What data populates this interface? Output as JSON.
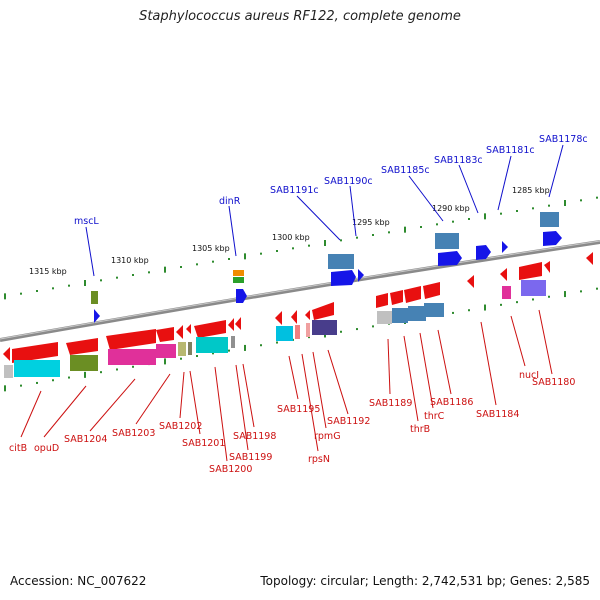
{
  "title": "Staphylococcus aureus RF122, complete genome",
  "footer": {
    "accession": "Accession: NC_007622",
    "summary": "Topology: circular; Length: 2,742,531 bp; Genes: 2,585"
  },
  "colors": {
    "backbone": "#8a8a8a",
    "tick": "#2e8b2e",
    "upper_label": "#1010cc",
    "lower_label": "#cc1010",
    "forward_gene": "#1515e8",
    "reverse_gene": "#e81010"
  },
  "scale_labels": [
    "1315 kbp",
    "1310 kbp",
    "1305 kbp",
    "1300 kbp",
    "1295 kbp",
    "1290 kbp",
    "1285 kbp"
  ],
  "upper_genes": [
    "mscL",
    "dinR",
    "SAB1191c",
    "SAB1190c",
    "SAB1185c",
    "SAB1183c",
    "SAB1181c",
    "SAB1178c"
  ],
  "lower_genes": [
    "citB",
    "opuD",
    "SAB1204",
    "SAB1203",
    "SAB1202",
    "SAB1201",
    "SAB1200",
    "SAB1199",
    "SAB1198",
    "SAB1195",
    "rpsN",
    "rpmG",
    "SAB1192",
    "SAB1189",
    "thrB",
    "thrC",
    "SAB1186",
    "SAB1184",
    "nucI",
    "SAB1180"
  ]
}
